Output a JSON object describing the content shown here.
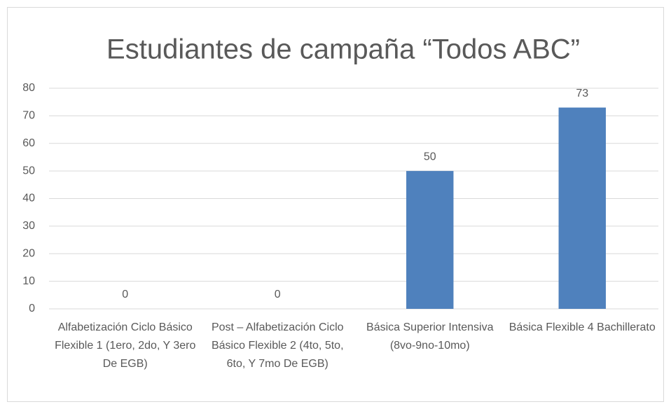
{
  "chart_data": {
    "type": "bar",
    "title": "Estudiantes de campaña “Todos ABC”",
    "categories": [
      "Alfabetización Ciclo Básico Flexible 1 (1ero, 2do, Y 3ero De EGB)",
      "Post – Alfabetización Ciclo Básico Flexible 2 (4to, 5to, 6to, Y 7mo De EGB)",
      "Básica Superior Intensiva   (8vo-9no-10mo)",
      "Básica Flexible 4 Bachillerato"
    ],
    "values": [
      0,
      0,
      50,
      73
    ],
    "color": "#4f81bd",
    "ylim": [
      0,
      80
    ],
    "yticks": [
      0,
      10,
      20,
      30,
      40,
      50,
      60,
      70,
      80
    ],
    "grid": true
  }
}
